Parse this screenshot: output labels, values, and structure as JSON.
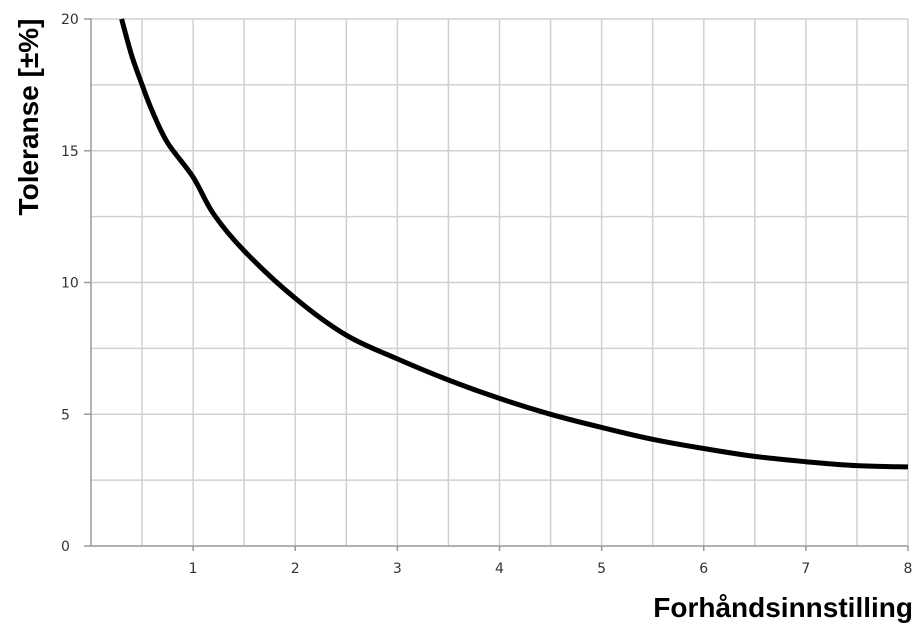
{
  "chart_data": {
    "type": "line",
    "title": "",
    "xlabel": "Forhåndsinnstilling",
    "ylabel": "Toleranse [±%]",
    "xlim": [
      0,
      8
    ],
    "ylim": [
      0,
      20
    ],
    "x_ticks": [
      1,
      2,
      3,
      4,
      5,
      6,
      7,
      8
    ],
    "y_ticks": [
      0,
      5,
      10,
      15,
      20
    ],
    "x_tick_labels": [
      "1",
      "2",
      "3",
      "4",
      "5",
      "6",
      "7",
      "8"
    ],
    "y_tick_labels": [
      "0",
      "5",
      "10",
      "15",
      "20"
    ],
    "grid": true,
    "legend": "none",
    "colors": {
      "line": "#000000",
      "grid": "#d0d0d0",
      "axis": "#999999"
    },
    "series": [
      {
        "x": [
          0.3,
          0.4,
          0.5,
          0.6,
          0.75,
          1.0,
          1.2,
          1.5,
          2.0,
          2.5,
          3.0,
          3.5,
          4.0,
          4.5,
          5.0,
          5.5,
          6.0,
          6.5,
          7.0,
          7.5,
          8.0
        ],
        "values": [
          20.0,
          18.6,
          17.5,
          16.5,
          15.3,
          14.0,
          12.6,
          11.2,
          9.4,
          8.0,
          7.1,
          6.3,
          5.6,
          5.0,
          4.5,
          4.05,
          3.7,
          3.4,
          3.2,
          3.05,
          3.0
        ]
      }
    ]
  }
}
